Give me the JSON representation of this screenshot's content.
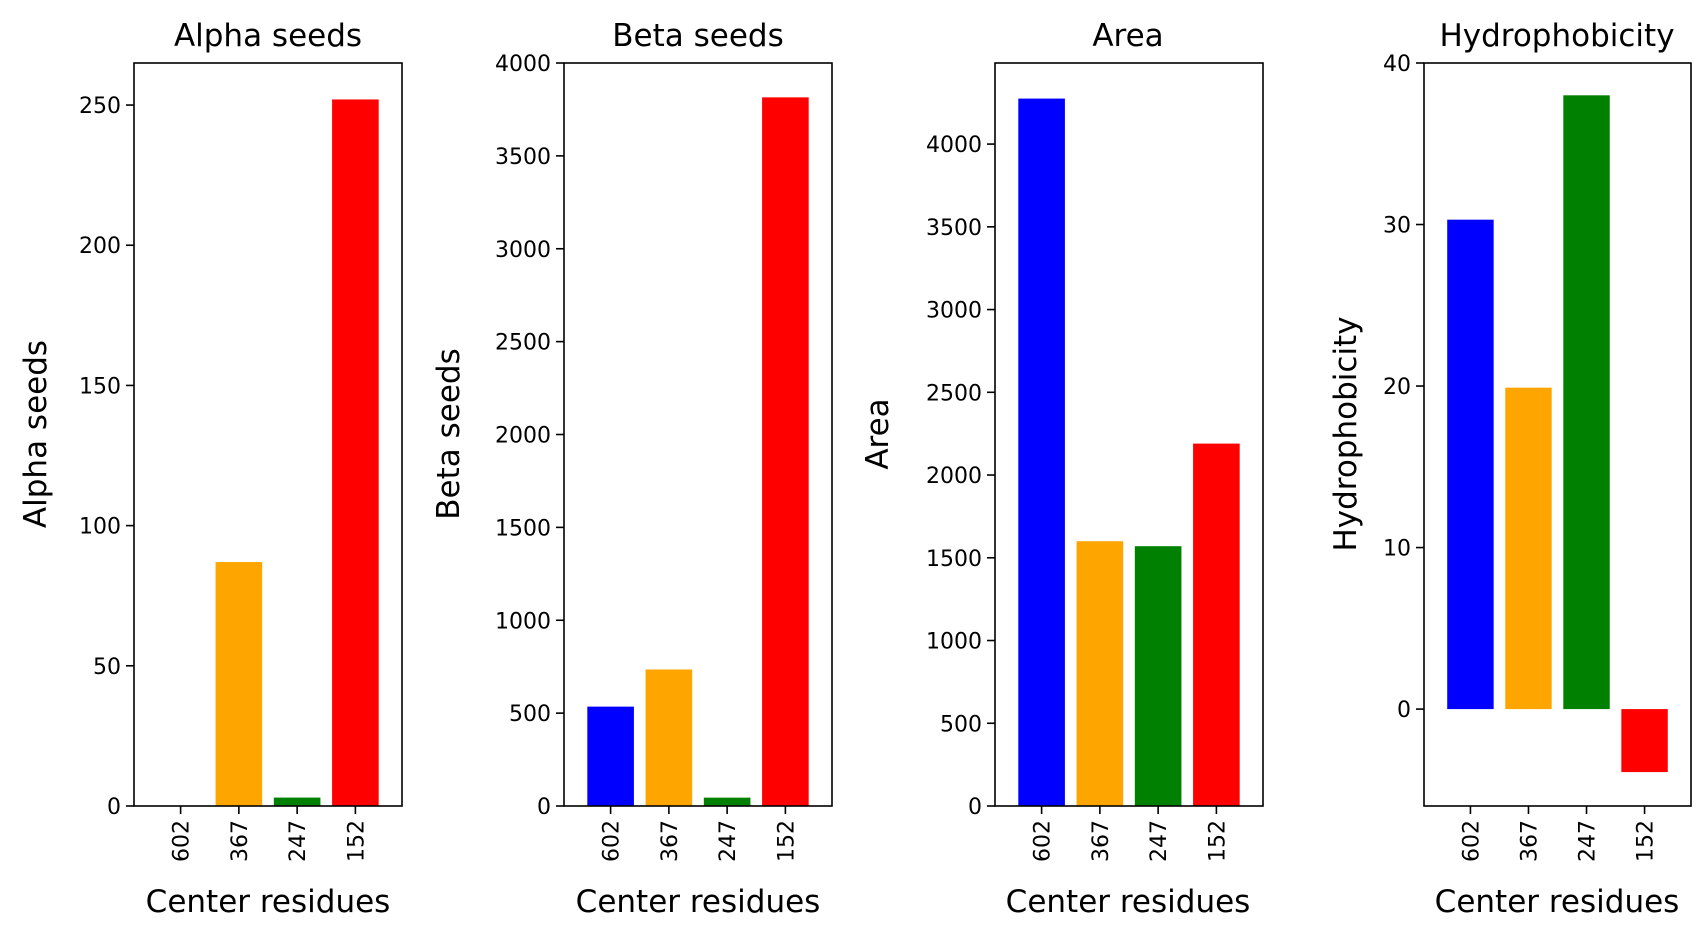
{
  "figure": {
    "background": "#ffffff"
  },
  "chart_data": [
    {
      "type": "bar",
      "title": "Alpha seeds",
      "xlabel": "Center residues",
      "ylabel": "Alpha seeds",
      "categories": [
        "602",
        "367",
        "247",
        "152"
      ],
      "values": [
        0,
        87,
        3,
        252
      ],
      "colors": [
        "#0000ff",
        "#ffa500",
        "#008000",
        "#ff0000"
      ],
      "ylim": [
        0,
        265
      ],
      "yticks": [
        0,
        50,
        100,
        150,
        200,
        250
      ],
      "grid": false,
      "legend": false
    },
    {
      "type": "bar",
      "title": "Beta seeds",
      "xlabel": "Center residues",
      "ylabel": "Beta seeds",
      "categories": [
        "602",
        "367",
        "247",
        "152"
      ],
      "values": [
        535,
        735,
        45,
        3815
      ],
      "colors": [
        "#0000ff",
        "#ffa500",
        "#008000",
        "#ff0000"
      ],
      "ylim": [
        0,
        4000
      ],
      "yticks": [
        0,
        500,
        1000,
        1500,
        2000,
        2500,
        3000,
        3500,
        4000
      ],
      "grid": false,
      "legend": false
    },
    {
      "type": "bar",
      "title": "Area",
      "xlabel": "Center residues",
      "ylabel": "Area",
      "categories": [
        "602",
        "367",
        "247",
        "152"
      ],
      "values": [
        4275,
        1600,
        1570,
        2190
      ],
      "colors": [
        "#0000ff",
        "#ffa500",
        "#008000",
        "#ff0000"
      ],
      "ylim": [
        0,
        4490
      ],
      "yticks": [
        0,
        500,
        1000,
        1500,
        2000,
        2500,
        3000,
        3500,
        4000
      ],
      "grid": false,
      "legend": false
    },
    {
      "type": "bar",
      "title": "Hydrophobicity",
      "xlabel": "Center residues",
      "ylabel": "Hydrophobicity",
      "categories": [
        "602",
        "367",
        "247",
        "152"
      ],
      "values": [
        30.3,
        19.9,
        38.0,
        -3.9
      ],
      "colors": [
        "#0000ff",
        "#ffa500",
        "#008000",
        "#ff0000"
      ],
      "ylim": [
        -6,
        40
      ],
      "yticks": [
        0,
        10,
        20,
        30,
        40
      ],
      "grid": false,
      "legend": false
    }
  ]
}
